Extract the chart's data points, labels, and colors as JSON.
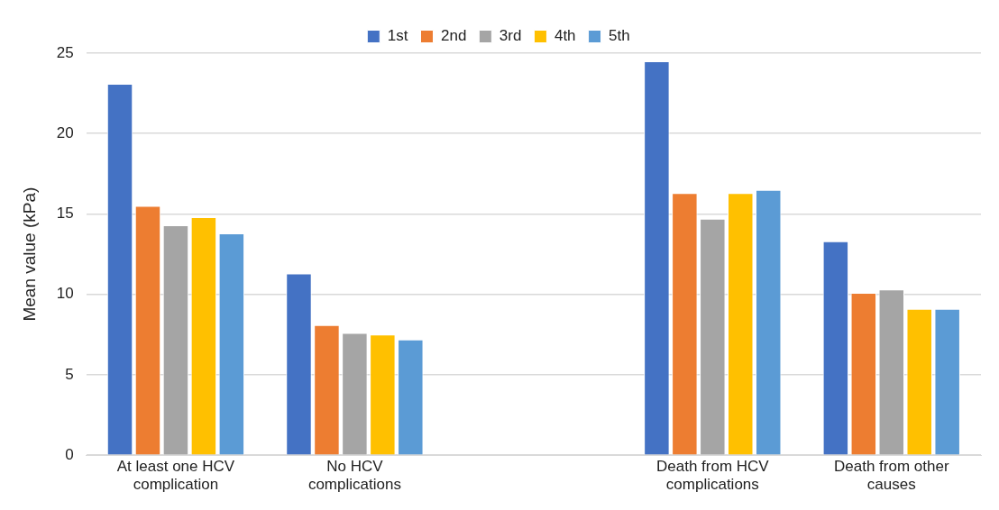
{
  "chart_data": {
    "type": "bar",
    "ylabel": "Mean value (kPa)",
    "categories": [
      "At least one HCV complication",
      "No HCV complications",
      null,
      "Death from HCV complications",
      "Death from other causes"
    ],
    "series": [
      {
        "name": "1st",
        "color": "#4472c4",
        "values": [
          23.1,
          11.3,
          null,
          24.5,
          13.3
        ]
      },
      {
        "name": "2nd",
        "color": "#ed7d31",
        "values": [
          15.5,
          8.1,
          null,
          16.3,
          10.1
        ]
      },
      {
        "name": "3rd",
        "color": "#a5a5a5",
        "values": [
          14.3,
          7.6,
          null,
          14.7,
          10.3
        ]
      },
      {
        "name": "4th",
        "color": "#ffc000",
        "values": [
          14.8,
          7.5,
          null,
          16.3,
          9.1
        ]
      },
      {
        "name": "5th",
        "color": "#5b9bd5",
        "values": [
          13.8,
          7.2,
          null,
          16.5,
          9.1
        ]
      }
    ],
    "ylim": [
      0,
      25
    ],
    "yticks": [
      0,
      5,
      10,
      15,
      20,
      25
    ],
    "grid": "y",
    "legend": "top"
  }
}
